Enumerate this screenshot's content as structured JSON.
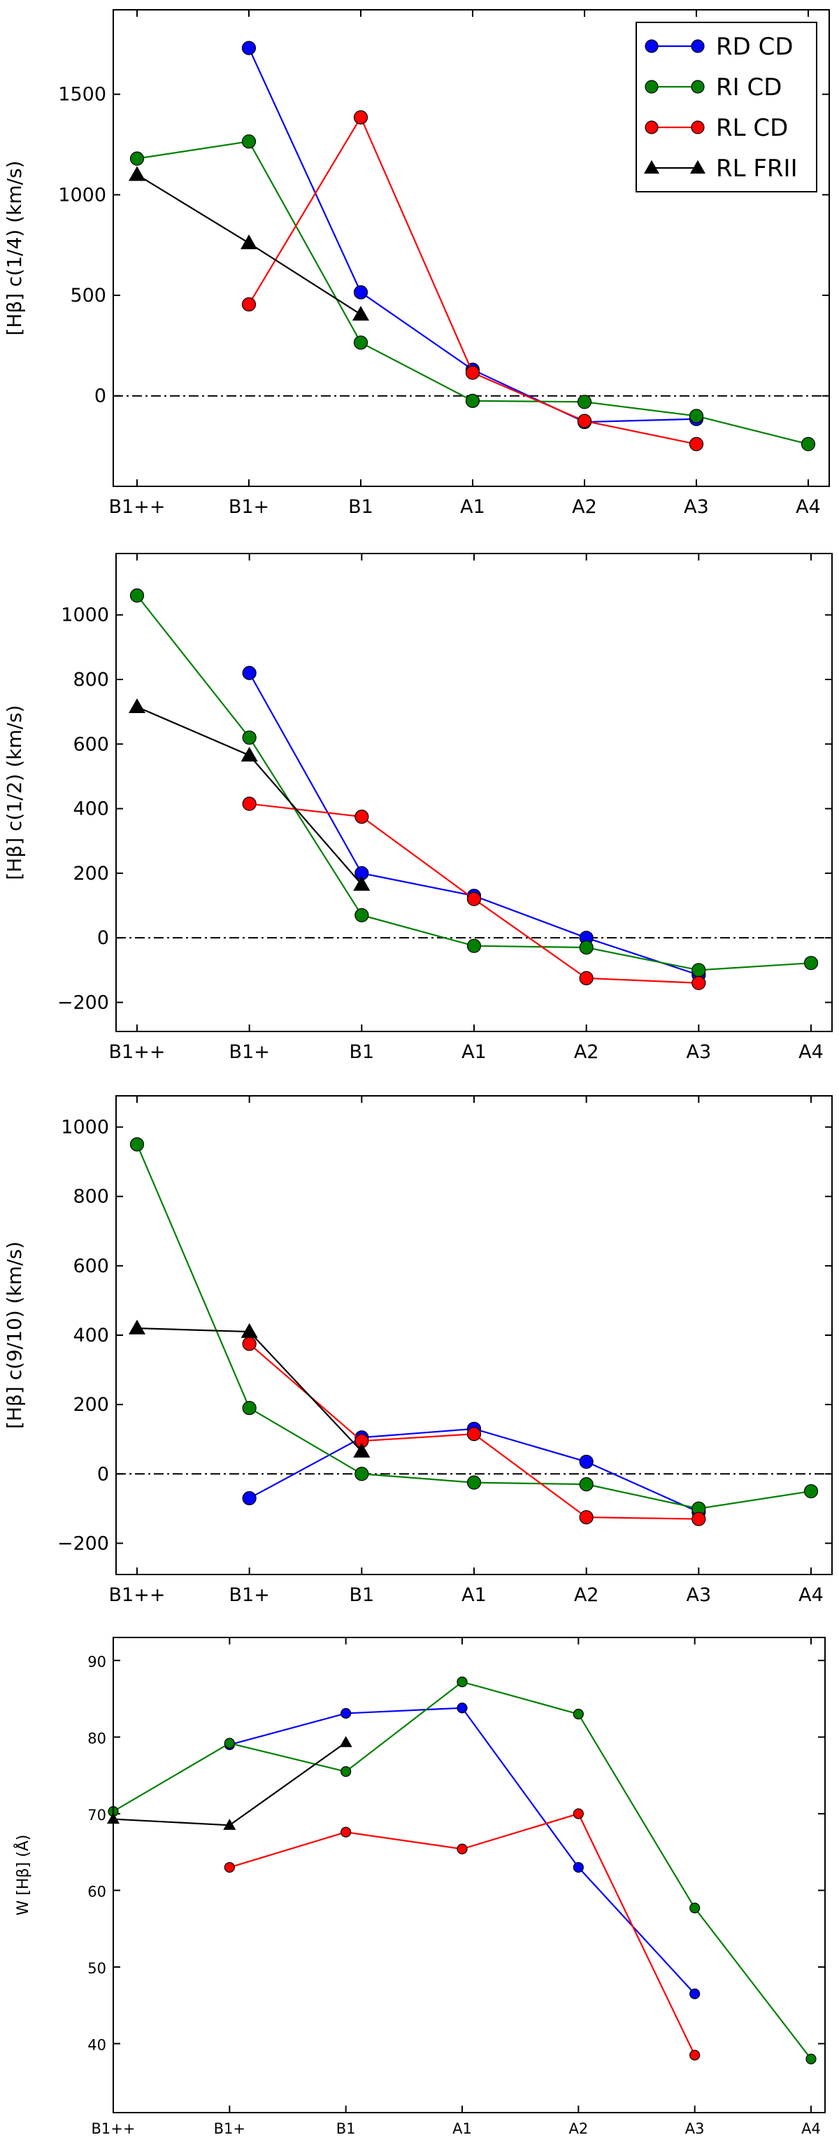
{
  "chart_data": [
    {
      "type": "line",
      "ylabel": "[Hβ] c(1/4) (km/s)",
      "categories": [
        "B1++",
        "B1+",
        "B1",
        "A1",
        "A2",
        "A3",
        "A4"
      ],
      "ylim": [
        -450,
        1920
      ],
      "yticks": [
        0,
        500,
        1000,
        1500
      ],
      "zero_line": true,
      "legend": {
        "placement": "top-right"
      },
      "series": [
        {
          "name": "RD CD",
          "color": "#0000ff",
          "marker": "circle",
          "values": [
            null,
            1730,
            515,
            130,
            -130,
            -115,
            null
          ]
        },
        {
          "name": "RI CD",
          "color": "#008000",
          "marker": "circle",
          "values": [
            1180,
            1265,
            265,
            -25,
            -30,
            -100,
            -240
          ]
        },
        {
          "name": "RL CD",
          "color": "#ff0000",
          "marker": "circle",
          "values": [
            null,
            455,
            1385,
            115,
            -125,
            -240,
            null
          ]
        },
        {
          "name": "RL FRII",
          "color": "#000000",
          "marker": "triangle",
          "values": [
            1100,
            760,
            405,
            null,
            null,
            null,
            null
          ]
        }
      ]
    },
    {
      "type": "line",
      "ylabel": "[Hβ] c(1/2) (km/s)",
      "categories": [
        "B1++",
        "B1+",
        "B1",
        "A1",
        "A2",
        "A3",
        "A4"
      ],
      "ylim": [
        -290,
        1190
      ],
      "yticks": [
        -200,
        0,
        200,
        400,
        600,
        800,
        1000
      ],
      "zero_line": true,
      "series": [
        {
          "name": "RD CD",
          "color": "#0000ff",
          "marker": "circle",
          "values": [
            null,
            820,
            200,
            130,
            0,
            -115,
            null
          ]
        },
        {
          "name": "RI CD",
          "color": "#008000",
          "marker": "circle",
          "values": [
            1060,
            620,
            70,
            -25,
            -30,
            -100,
            -78
          ]
        },
        {
          "name": "RL CD",
          "color": "#ff0000",
          "marker": "circle",
          "values": [
            null,
            415,
            375,
            120,
            -125,
            -140,
            null
          ]
        },
        {
          "name": "RL FRII",
          "color": "#000000",
          "marker": "triangle",
          "values": [
            715,
            565,
            165,
            null,
            null,
            null,
            null
          ]
        }
      ]
    },
    {
      "type": "line",
      "ylabel": "[Hβ] c(9/10) (km/s)",
      "categories": [
        "B1++",
        "B1+",
        "B1",
        "A1",
        "A2",
        "A3",
        "A4"
      ],
      "ylim": [
        -290,
        1090
      ],
      "yticks": [
        -200,
        0,
        200,
        400,
        600,
        800,
        1000
      ],
      "zero_line": true,
      "series": [
        {
          "name": "RD CD",
          "color": "#0000ff",
          "marker": "circle",
          "values": [
            null,
            -70,
            105,
            130,
            35,
            -110,
            null
          ]
        },
        {
          "name": "RI CD",
          "color": "#008000",
          "marker": "circle",
          "values": [
            950,
            190,
            0,
            -25,
            -30,
            -100,
            -50
          ]
        },
        {
          "name": "RL CD",
          "color": "#ff0000",
          "marker": "circle",
          "values": [
            null,
            375,
            95,
            115,
            -125,
            -130,
            null
          ]
        },
        {
          "name": "RL FRII",
          "color": "#000000",
          "marker": "triangle",
          "values": [
            420,
            410,
            65,
            null,
            null,
            null,
            null
          ]
        }
      ]
    },
    {
      "type": "line",
      "ylabel": "W [Hβ] (Å)",
      "categories": [
        "B1++",
        "B1+",
        "B1",
        "A1",
        "A2",
        "A3",
        "A4"
      ],
      "ylim": [
        31,
        93
      ],
      "yticks": [
        40,
        50,
        60,
        70,
        80,
        90
      ],
      "zero_line": false,
      "series": [
        {
          "name": "RD CD",
          "color": "#0000ff",
          "marker": "circle",
          "values": [
            null,
            79,
            83.1,
            83.8,
            63,
            46.5,
            null
          ]
        },
        {
          "name": "RI CD",
          "color": "#008000",
          "marker": "circle",
          "values": [
            70.3,
            79.2,
            75.5,
            87.2,
            83,
            57.7,
            38
          ]
        },
        {
          "name": "RL CD",
          "color": "#ff0000",
          "marker": "circle",
          "values": [
            null,
            63,
            67.6,
            65.4,
            70,
            38.5,
            null
          ]
        },
        {
          "name": "RL FRII",
          "color": "#000000",
          "marker": "triangle",
          "values": [
            69.3,
            68.5,
            79.3,
            null,
            null,
            null,
            null
          ]
        }
      ]
    }
  ]
}
